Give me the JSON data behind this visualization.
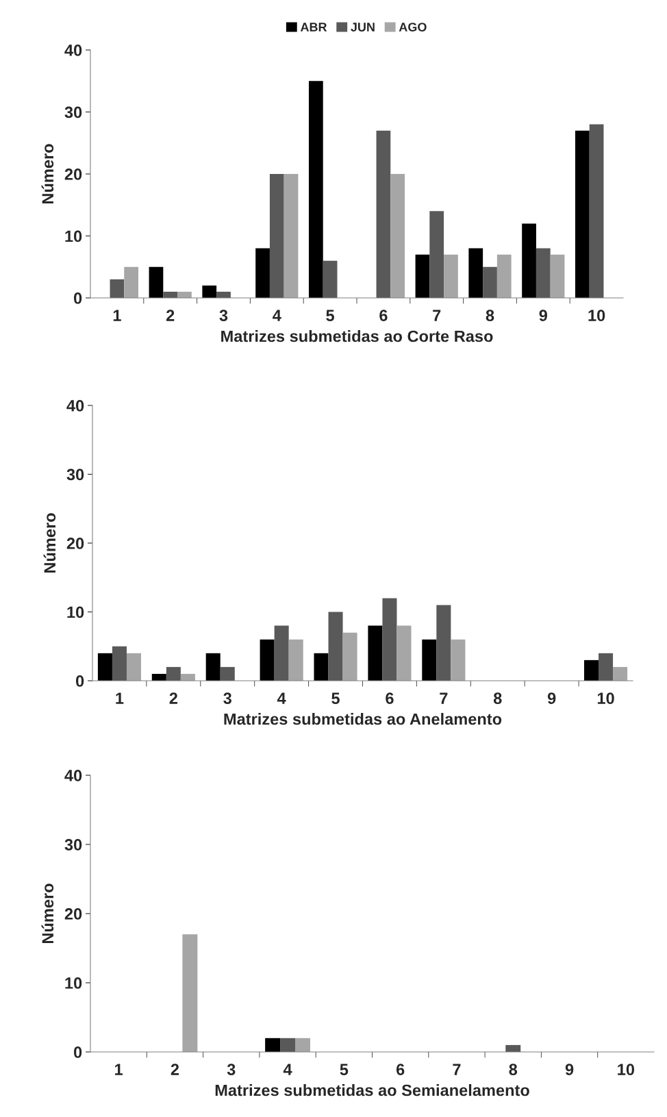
{
  "chart_data": [
    {
      "type": "bar",
      "xlabel": "Matrizes submetidas ao Corte Raso",
      "ylabel": "Número",
      "categories": [
        "1",
        "2",
        "3",
        "4",
        "5",
        "6",
        "7",
        "8",
        "9",
        "10"
      ],
      "ylim": [
        0,
        40
      ],
      "yticks": [
        0,
        10,
        20,
        30,
        40
      ],
      "legend": "top",
      "grid": false,
      "series": [
        {
          "name": "ABR",
          "color": "#000000",
          "values": [
            0,
            5,
            2,
            8,
            35,
            0,
            7,
            8,
            12,
            27
          ]
        },
        {
          "name": "JUN",
          "color": "#595959",
          "values": [
            3,
            1,
            1,
            20,
            6,
            27,
            14,
            5,
            8,
            28
          ]
        },
        {
          "name": "AGO",
          "color": "#a6a6a6",
          "values": [
            5,
            1,
            0,
            20,
            0,
            20,
            7,
            7,
            7,
            0
          ]
        }
      ]
    },
    {
      "type": "bar",
      "xlabel": "Matrizes submetidas ao Anelamento",
      "ylabel": "Número",
      "categories": [
        "1",
        "2",
        "3",
        "4",
        "5",
        "6",
        "7",
        "8",
        "9",
        "10"
      ],
      "ylim": [
        0,
        40
      ],
      "yticks": [
        0,
        10,
        20,
        30,
        40
      ],
      "grid": false,
      "series": [
        {
          "color": "#000000",
          "values": [
            4,
            1,
            4,
            6,
            4,
            8,
            6,
            0,
            0,
            3
          ]
        },
        {
          "color": "#595959",
          "values": [
            5,
            2,
            2,
            8,
            10,
            12,
            11,
            0,
            0,
            4
          ]
        },
        {
          "color": "#a6a6a6",
          "values": [
            4,
            1,
            0,
            6,
            7,
            8,
            6,
            0,
            0,
            2
          ]
        }
      ]
    },
    {
      "type": "bar",
      "xlabel": "Matrizes submetidas ao Semianelamento",
      "ylabel": "Número",
      "categories": [
        "1",
        "2",
        "3",
        "4",
        "5",
        "6",
        "7",
        "8",
        "9",
        "10"
      ],
      "ylim": [
        0,
        40
      ],
      "yticks": [
        0,
        10,
        20,
        30,
        40
      ],
      "grid": false,
      "series": [
        {
          "color": "#000000",
          "values": [
            0,
            0,
            0,
            2,
            0,
            0,
            0,
            0,
            0,
            0
          ]
        },
        {
          "color": "#595959",
          "values": [
            0,
            0,
            0,
            2,
            0,
            0,
            0,
            1,
            0,
            0
          ]
        },
        {
          "color": "#a6a6a6",
          "values": [
            0,
            17,
            0,
            2,
            0,
            0,
            0,
            0,
            0,
            0
          ]
        }
      ]
    }
  ]
}
